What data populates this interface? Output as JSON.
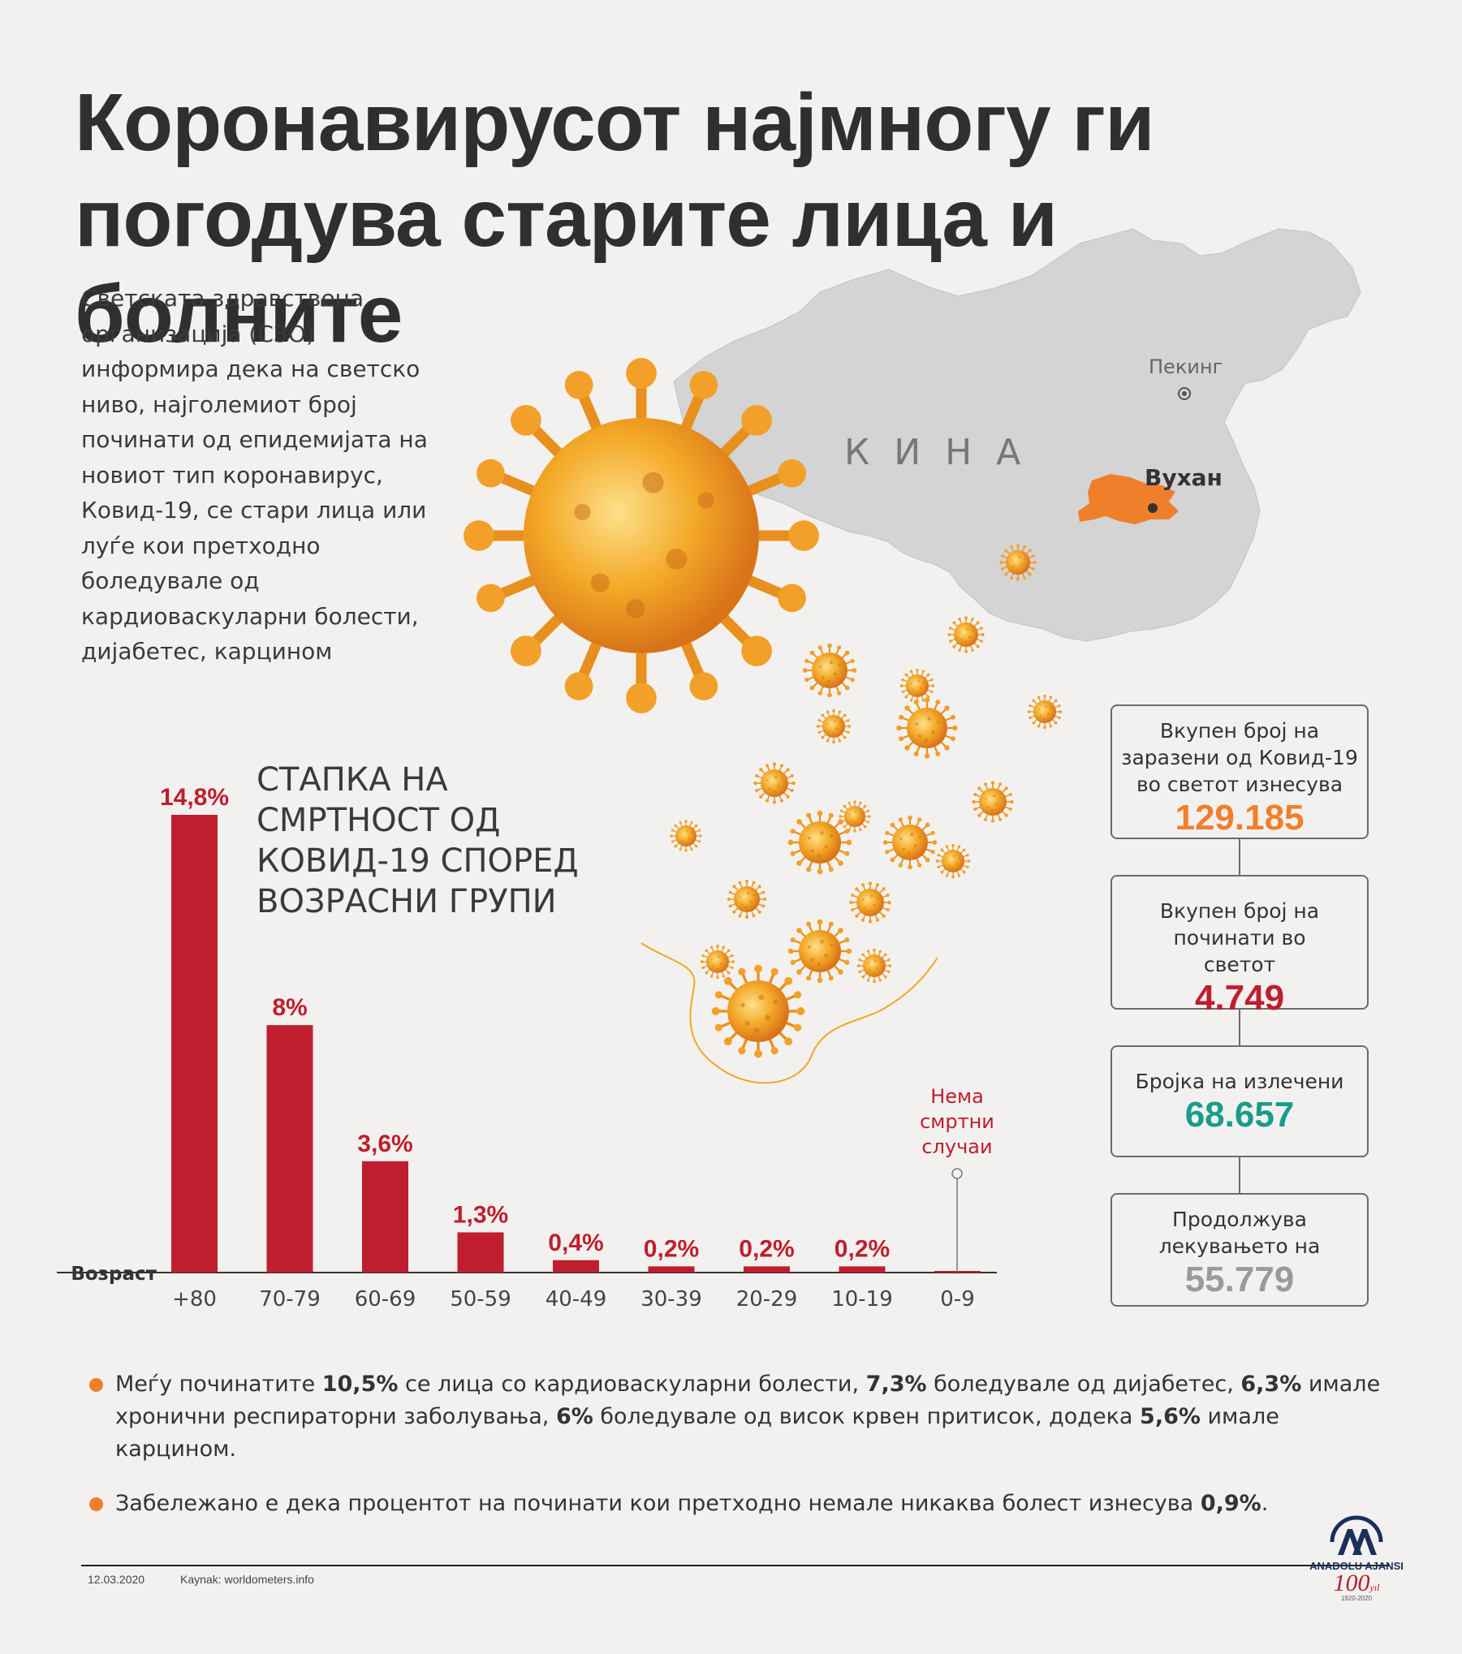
{
  "title": "Коронавирусот најмногу ги погодува старите лица и болните",
  "intro": "Светската здравствена организација (СЗО) информира дека на светско ниво, најголемиот број починати од епидемијата на новиот тип коронавирус, Ковид-19, се стари лица или луѓе кои претходно боледувале од кардиоваскуларни болести, дијабетес, карцином",
  "map": {
    "country": "К И Н А",
    "capital": "Пекинг",
    "city": "Вухан",
    "colors": {
      "land": "#d4d4d4",
      "hubei": "#f07f2c",
      "virus": "#f0a822"
    }
  },
  "chart_data": {
    "type": "bar",
    "title": "СТАПКА НА СМРТНОСТ ОД КОВИД-19 СПОРЕД ВОЗРАСНИ ГРУПИ",
    "xlabel": "Возраст",
    "categories": [
      "+80",
      "70-79",
      "60-69",
      "50-59",
      "40-49",
      "30-39",
      "20-29",
      "10-19",
      "0-9"
    ],
    "values": [
      14.8,
      8,
      3.6,
      1.3,
      0.4,
      0.2,
      0.2,
      0.2,
      0
    ],
    "value_labels": [
      "14,8%",
      "8%",
      "3,6%",
      "1,3%",
      "0,4%",
      "0,2%",
      "0,2%",
      "0,2%",
      ""
    ],
    "annotation": "Нема смртни случаи",
    "bar_color": "#bf1e2e",
    "label_color": "#bf1e2e"
  },
  "stats": [
    {
      "label": "Вкупен број на заразени од Ковид-19 во светот изнесува",
      "value": "129.185",
      "color": "#f07f2c"
    },
    {
      "label": "Вкупен број на починати во светот",
      "value": "4.749",
      "color": "#bf1e2e"
    },
    {
      "label": "Бројка на излечени",
      "value": "68.657",
      "color": "#1a9c8c"
    },
    {
      "label": "Продолжува лекувањето на",
      "value": "55.779",
      "color": "#9a9a9a"
    }
  ],
  "notes": [
    {
      "parts": [
        {
          "t": "Меѓу починатите ",
          "b": false
        },
        {
          "t": "10,5%",
          "b": true
        },
        {
          "t": " се лица со кардиоваскуларни болести, ",
          "b": false
        },
        {
          "t": "7,3%",
          "b": true
        },
        {
          "t": " боледувале од дијабетес, ",
          "b": false
        },
        {
          "t": "6,3%",
          "b": true
        },
        {
          "t": " имале хронични респираторни заболувања, ",
          "b": false
        },
        {
          "t": "6%",
          "b": true
        },
        {
          "t": " боледувале од висок крвен притисок, додека ",
          "b": false
        },
        {
          "t": "5,6%",
          "b": true
        },
        {
          "t": " имале карцином.",
          "b": false
        }
      ]
    },
    {
      "parts": [
        {
          "t": "Забележано е дека процентот на починати кои претходно немале никаква болест изнесува ",
          "b": false
        },
        {
          "t": "0,9%",
          "b": true
        },
        {
          "t": ".",
          "b": false
        }
      ]
    }
  ],
  "footer": {
    "date": "12.03.2020",
    "source": "Kaynak: worldometers.info"
  },
  "logo": {
    "text": "ANADOLU AJANSI",
    "hundred": "100",
    "yil": "yıl",
    "years": "1920-2020"
  }
}
